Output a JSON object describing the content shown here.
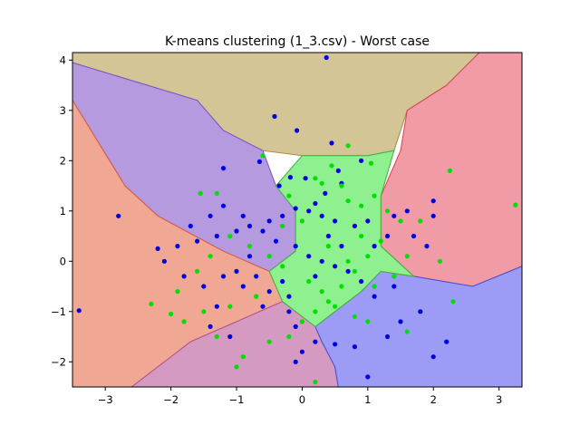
{
  "chart_data": {
    "type": "scatter",
    "title": "K-means clustering (1_3.csv) - Worst case",
    "xlabel": "",
    "ylabel": "",
    "xlim": [
      -3.5,
      3.35
    ],
    "ylim": [
      -2.5,
      4.15
    ],
    "x_ticks": [
      -3,
      -2,
      -1,
      0,
      1,
      2,
      3
    ],
    "y_ticks": [
      -2,
      -1,
      0,
      1,
      2,
      3,
      4
    ],
    "grid": false,
    "legend": "none",
    "background_regions": [
      {
        "name": "tan region",
        "color": "#d4c596",
        "edge_color": "#a88b3f",
        "polygon": [
          [
            -3.5,
            4.15
          ],
          [
            -3.5,
            3.95
          ],
          [
            -1.6,
            3.2
          ],
          [
            -1.2,
            2.6
          ],
          [
            -0.6,
            2.2
          ],
          [
            0.0,
            2.1
          ],
          [
            0.5,
            2.1
          ],
          [
            1.0,
            2.1
          ],
          [
            1.4,
            2.2
          ],
          [
            1.6,
            3.0
          ],
          [
            2.2,
            3.5
          ],
          [
            2.7,
            4.15
          ]
        ]
      },
      {
        "name": "red region (top right)",
        "color": "#f09ba6",
        "edge_color": "#d9404f",
        "polygon": [
          [
            2.7,
            4.15
          ],
          [
            3.35,
            4.15
          ],
          [
            3.35,
            -0.1
          ],
          [
            2.6,
            -0.5
          ],
          [
            1.7,
            -0.3
          ],
          [
            1.2,
            0.3
          ],
          [
            1.2,
            1.3
          ],
          [
            1.5,
            2.2
          ],
          [
            1.6,
            3.0
          ],
          [
            2.2,
            3.5
          ]
        ]
      },
      {
        "name": "purple region",
        "color": "#b59ae0",
        "edge_color": "#7b4fc9",
        "polygon": [
          [
            -3.5,
            3.95
          ],
          [
            -1.6,
            3.2
          ],
          [
            -1.2,
            2.6
          ],
          [
            -0.6,
            2.2
          ],
          [
            -0.4,
            1.5
          ],
          [
            -0.1,
            1.0
          ],
          [
            -0.1,
            0.2
          ],
          [
            -0.5,
            -0.2
          ],
          [
            -1.2,
            0.2
          ],
          [
            -2.2,
            0.9
          ],
          [
            -2.7,
            1.5
          ],
          [
            -3.5,
            3.2
          ]
        ]
      },
      {
        "name": "salmon region",
        "color": "#f0a895",
        "edge_color": "#d95a3f",
        "polygon": [
          [
            -3.5,
            3.2
          ],
          [
            -2.7,
            1.5
          ],
          [
            -2.2,
            0.9
          ],
          [
            -1.2,
            0.2
          ],
          [
            -0.5,
            -0.2
          ],
          [
            -0.3,
            -0.8
          ],
          [
            -1.0,
            -1.2
          ],
          [
            -1.7,
            -1.6
          ],
          [
            -2.6,
            -2.5
          ],
          [
            -3.5,
            -2.5
          ]
        ]
      },
      {
        "name": "magenta region",
        "color": "#d59ac2",
        "edge_color": "#b0508f",
        "polygon": [
          [
            -2.6,
            -2.5
          ],
          [
            -1.7,
            -1.6
          ],
          [
            -1.0,
            -1.2
          ],
          [
            -0.3,
            -0.8
          ],
          [
            0.2,
            -1.3
          ],
          [
            0.3,
            -1.6
          ],
          [
            0.5,
            -2.1
          ],
          [
            0.55,
            -2.5
          ]
        ]
      },
      {
        "name": "blue region",
        "color": "#9c9cf7",
        "edge_color": "#4a4ad9",
        "polygon": [
          [
            0.55,
            -2.5
          ],
          [
            0.5,
            -2.1
          ],
          [
            0.3,
            -1.6
          ],
          [
            0.2,
            -1.3
          ],
          [
            0.6,
            -0.9
          ],
          [
            0.9,
            -0.6
          ],
          [
            1.2,
            -0.2
          ],
          [
            1.7,
            -0.3
          ],
          [
            2.6,
            -0.5
          ],
          [
            3.35,
            -0.1
          ],
          [
            3.35,
            -2.5
          ]
        ]
      },
      {
        "name": "green region",
        "color": "#8ff08f",
        "edge_color": "#3fb03f",
        "polygon": [
          [
            -0.4,
            1.5
          ],
          [
            0.0,
            2.1
          ],
          [
            0.5,
            2.1
          ],
          [
            1.0,
            2.1
          ],
          [
            1.4,
            2.2
          ],
          [
            1.2,
            1.3
          ],
          [
            1.2,
            0.3
          ],
          [
            1.7,
            -0.3
          ],
          [
            1.2,
            -0.2
          ],
          [
            0.9,
            -0.6
          ],
          [
            0.6,
            -0.9
          ],
          [
            0.2,
            -1.3
          ],
          [
            -0.3,
            -0.8
          ],
          [
            -0.5,
            -0.2
          ],
          [
            -0.1,
            0.2
          ],
          [
            -0.1,
            1.0
          ]
        ]
      }
    ],
    "series": [
      {
        "color": "#0000e0",
        "points": [
          [
            0.37,
            4.05
          ],
          [
            -0.42,
            2.88
          ],
          [
            -0.08,
            2.6
          ],
          [
            0.45,
            2.35
          ],
          [
            -0.65,
            1.98
          ],
          [
            0.9,
            2.0
          ],
          [
            -1.2,
            1.85
          ],
          [
            -0.18,
            1.67
          ],
          [
            0.05,
            1.65
          ],
          [
            -0.35,
            1.5
          ],
          [
            0.55,
            1.8
          ],
          [
            0.2,
            1.15
          ],
          [
            0.1,
            1.0
          ],
          [
            -0.1,
            1.05
          ],
          [
            0.3,
            0.9
          ],
          [
            0.5,
            0.8
          ],
          [
            0.8,
            0.7
          ],
          [
            1.0,
            0.8
          ],
          [
            -0.3,
            0.9
          ],
          [
            -0.5,
            0.8
          ],
          [
            -0.8,
            0.7
          ],
          [
            -1.0,
            0.6
          ],
          [
            -1.3,
            0.5
          ],
          [
            -1.6,
            0.4
          ],
          [
            -1.9,
            0.3
          ],
          [
            -2.2,
            0.25
          ],
          [
            -2.8,
            0.9
          ],
          [
            -3.4,
            -0.98
          ],
          [
            -2.1,
            0.0
          ],
          [
            -1.8,
            -0.3
          ],
          [
            -1.5,
            -0.5
          ],
          [
            -1.3,
            -0.9
          ],
          [
            -1.4,
            -1.3
          ],
          [
            -1.1,
            -1.5
          ],
          [
            -0.9,
            -0.5
          ],
          [
            -0.7,
            -0.3
          ],
          [
            -0.5,
            -0.6
          ],
          [
            -0.3,
            -0.4
          ],
          [
            -0.2,
            -1.0
          ],
          [
            -0.1,
            -1.3
          ],
          [
            0.2,
            -1.6
          ],
          [
            0.0,
            -1.8
          ],
          [
            -0.1,
            -2.0
          ],
          [
            0.5,
            -1.65
          ],
          [
            0.8,
            -1.7
          ],
          [
            1.0,
            -2.3
          ],
          [
            1.3,
            -1.5
          ],
          [
            1.5,
            -1.2
          ],
          [
            1.8,
            -1.0
          ],
          [
            2.0,
            -1.9
          ],
          [
            2.2,
            -1.6
          ],
          [
            1.4,
            -0.5
          ],
          [
            1.1,
            -0.7
          ],
          [
            0.9,
            -0.4
          ],
          [
            0.7,
            -0.2
          ],
          [
            0.5,
            -0.1
          ],
          [
            0.3,
            0.0
          ],
          [
            0.1,
            0.1
          ],
          [
            -0.1,
            0.3
          ],
          [
            -0.4,
            0.4
          ],
          [
            -0.6,
            0.6
          ],
          [
            -0.9,
            0.9
          ],
          [
            -1.2,
            1.1
          ],
          [
            -1.4,
            0.9
          ],
          [
            -1.7,
            0.7
          ],
          [
            1.4,
            0.9
          ],
          [
            1.7,
            0.5
          ],
          [
            1.9,
            0.3
          ],
          [
            2.0,
            0.9
          ],
          [
            2.0,
            1.2
          ],
          [
            1.6,
            1.0
          ],
          [
            1.3,
            0.5
          ],
          [
            1.1,
            0.3
          ],
          [
            0.4,
            0.5
          ],
          [
            0.6,
            0.3
          ],
          [
            0.2,
            -0.3
          ],
          [
            -0.2,
            -0.7
          ],
          [
            -0.6,
            -0.9
          ],
          [
            -1.0,
            -0.2
          ],
          [
            -1.2,
            -0.3
          ],
          [
            -0.8,
            0.1
          ],
          [
            0.35,
            1.35
          ],
          [
            0.6,
            1.55
          ]
        ]
      },
      {
        "color": "#00e000",
        "points": [
          [
            0.45,
            1.9
          ],
          [
            1.05,
            1.95
          ],
          [
            2.25,
            1.8
          ],
          [
            3.25,
            1.12
          ],
          [
            -1.55,
            1.35
          ],
          [
            -1.3,
            1.35
          ],
          [
            0.6,
            1.5
          ],
          [
            0.3,
            1.55
          ],
          [
            0.7,
            1.2
          ],
          [
            0.9,
            1.1
          ],
          [
            1.1,
            1.3
          ],
          [
            1.3,
            1.0
          ],
          [
            1.5,
            0.8
          ],
          [
            1.8,
            0.8
          ],
          [
            1.2,
            0.4
          ],
          [
            1.0,
            0.1
          ],
          [
            0.8,
            -0.2
          ],
          [
            0.6,
            -0.5
          ],
          [
            0.4,
            -0.8
          ],
          [
            0.2,
            -1.0
          ],
          [
            0.0,
            -1.2
          ],
          [
            -0.2,
            -1.5
          ],
          [
            -0.5,
            -1.6
          ],
          [
            -0.9,
            -1.9
          ],
          [
            -1.0,
            -2.1
          ],
          [
            -1.3,
            -1.5
          ],
          [
            -1.5,
            -1.0
          ],
          [
            -1.8,
            -1.2
          ],
          [
            -2.3,
            -0.85
          ],
          [
            -1.9,
            -0.6
          ],
          [
            -1.6,
            -0.2
          ],
          [
            -1.4,
            0.1
          ],
          [
            -1.1,
            0.5
          ],
          [
            -0.8,
            0.3
          ],
          [
            -0.5,
            0.1
          ],
          [
            -0.3,
            -0.1
          ],
          [
            0.1,
            -0.4
          ],
          [
            0.3,
            -0.6
          ],
          [
            0.5,
            -0.9
          ],
          [
            0.8,
            -1.1
          ],
          [
            1.0,
            -1.2
          ],
          [
            1.6,
            -1.4
          ],
          [
            2.3,
            -0.8
          ],
          [
            2.1,
            0.0
          ],
          [
            1.6,
            0.1
          ],
          [
            1.4,
            -0.3
          ],
          [
            1.1,
            -0.5
          ],
          [
            -0.6,
            2.1
          ],
          [
            0.7,
            2.3
          ],
          [
            0.2,
            1.65
          ],
          [
            -0.2,
            1.3
          ],
          [
            0.0,
            0.8
          ],
          [
            0.4,
            0.3
          ],
          [
            0.7,
            0.0
          ],
          [
            0.9,
            0.5
          ],
          [
            -0.3,
            0.7
          ],
          [
            -0.7,
            -0.7
          ],
          [
            -1.1,
            -0.9
          ],
          [
            0.2,
            -2.4
          ],
          [
            -2.0,
            -1.05
          ]
        ]
      }
    ]
  }
}
